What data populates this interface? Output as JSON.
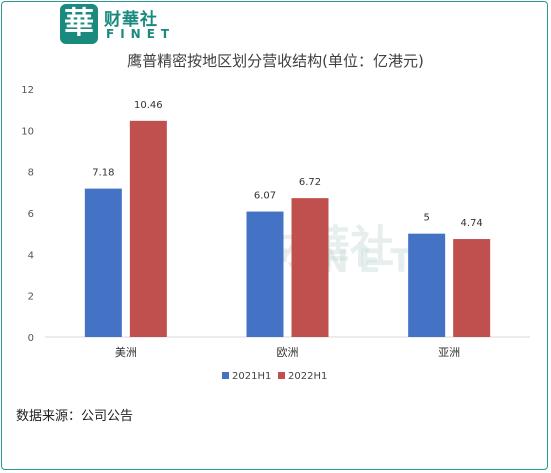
{
  "brand": {
    "badge_char": "華",
    "name_cn": "财華社",
    "name_en": "FINET",
    "watermark_cn": "財華社",
    "watermark_en": "FINET"
  },
  "source_note": "数据来源：公司公告",
  "colors": {
    "frame": "#2a9a8c",
    "brand": "#1a8a7e"
  },
  "chart_data": {
    "type": "bar",
    "title": "鹰普精密按地区划分营收结构(单位：亿港元)",
    "categories": [
      "美洲",
      "欧洲",
      "亚洲"
    ],
    "series": [
      {
        "name": "2021H1",
        "color": "#4472c4",
        "values": [
          7.18,
          6.07,
          5
        ],
        "labels": [
          "7.18",
          "6.07",
          "5"
        ]
      },
      {
        "name": "2022H1",
        "color": "#c0504d",
        "values": [
          10.46,
          6.72,
          4.74
        ],
        "labels": [
          "10.46",
          "6.72",
          "4.74"
        ]
      }
    ],
    "ylim": [
      0,
      12
    ],
    "yticks": [
      0,
      2,
      4,
      6,
      8,
      10,
      12
    ],
    "grid": false,
    "legend": "bottom-center"
  }
}
